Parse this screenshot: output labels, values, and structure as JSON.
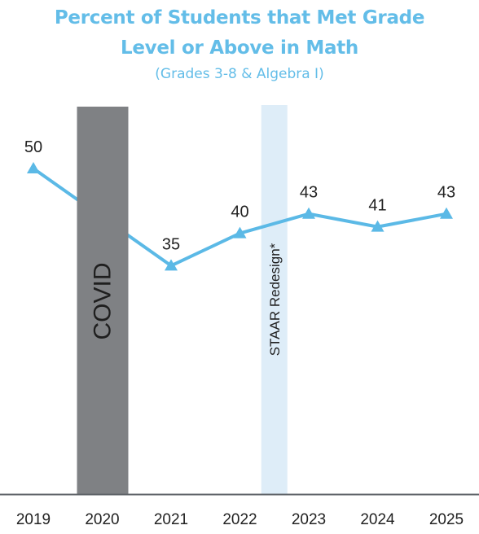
{
  "chart_data": {
    "type": "line",
    "title_line1": "Percent of Students that Met Grade",
    "title_line2": "Level or Above in Math",
    "subtitle": "(Grades 3-8 & Algebra I)",
    "categories": [
      "2019",
      "2020",
      "2021",
      "2022",
      "2023",
      "2024",
      "2025"
    ],
    "series": [
      {
        "values": [
          50,
          null,
          35,
          40,
          43,
          41,
          43
        ],
        "data_labels": [
          "50",
          "",
          "35",
          "40",
          "43",
          "41",
          "43"
        ],
        "marker": "triangle"
      }
    ],
    "ylim": [
      0,
      100
    ],
    "grid": false,
    "annotations": [
      {
        "label": "COVID",
        "category": "2020"
      },
      {
        "label": "STAAR Redesign*",
        "between": [
          "2022",
          "2023"
        ]
      }
    ],
    "colors": {
      "title": "#63bde8",
      "line": "#5bb9e6",
      "covid_band": "#7f8184",
      "staar_band": "#deedf8",
      "axis": "#5f6368",
      "text": "#222222"
    }
  }
}
